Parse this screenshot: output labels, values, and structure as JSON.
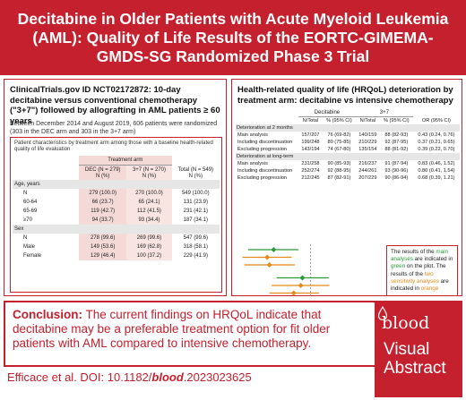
{
  "header": {
    "title": "Decitabine in Older Patients with Acute Myeloid Leukemia (AML): Quality of Life Results of the EORTC-GIMEMA-GMDS-SG Randomized Phase 3 Trial"
  },
  "left_panel": {
    "title": "ClinicalTrials.gov ID NCT02172872: 10-day decitabine versus conventional chemotherapy (\"3+7\") followed by allografting in AML patients ≥ 60 years",
    "description": "Between December 2014 and August 2019, 606 patients were randomized (303 in the DEC arm and 303 in the 3+7 arm)",
    "table_caption": "Patient characteristics by treatment arm among those with a baseline health-related quality of life evaluation",
    "treatment_arm_label": "Treatment arm",
    "columns": [
      "DEC (N = 279)\nN (%)",
      "3+7 (N = 270)\nN (%)",
      "Total (N = 549)\nN (%)"
    ],
    "col_dec": "DEC (N = 279)",
    "col_37": "3+7 (N = 270)",
    "col_total": "Total (N = 549)",
    "col_unit": "N (%)",
    "rows": [
      {
        "label": "Age, years",
        "section": true,
        "values": [
          "",
          "",
          ""
        ]
      },
      {
        "label": "N",
        "section": false,
        "values": [
          "279 (100.0)",
          "270 (100.0)",
          "549 (100.0)"
        ]
      },
      {
        "label": "60-64",
        "section": false,
        "values": [
          "66 (23.7)",
          "65 (24.1)",
          "131 (23.9)"
        ]
      },
      {
        "label": "65-69",
        "section": false,
        "values": [
          "119 (42.7)",
          "112 (41.5)",
          "231 (42.1)"
        ]
      },
      {
        "label": "≥70",
        "section": false,
        "values": [
          "94 (33.7)",
          "93 (34.4)",
          "187 (34.1)"
        ]
      },
      {
        "label": "Sex",
        "section": true,
        "values": [
          "",
          "",
          ""
        ]
      },
      {
        "label": "N",
        "section": false,
        "values": [
          "278 (99.6)",
          "269 (99.6)",
          "547 (99.6)"
        ]
      },
      {
        "label": "Male",
        "section": false,
        "values": [
          "149 (53.6)",
          "169 (62.8)",
          "318 (58.1)"
        ]
      },
      {
        "label": "Female",
        "section": false,
        "values": [
          "129 (46.4)",
          "100 (37.2)",
          "229 (41.9)"
        ]
      }
    ]
  },
  "right_panel": {
    "title": "Health-related quality of life (HRQoL) deterioration by treatment arm: decitabine vs intensive chemotherapy",
    "group_dec": "Decitabine",
    "group_37": "3+7",
    "columns": [
      "N/Total",
      "% (95% CI)",
      "N/Total",
      "% (95% CI)",
      "OR (95% CI)"
    ],
    "rows": [
      {
        "label": "Deterioration at 2 months",
        "section": true,
        "values": [
          "",
          "",
          "",
          "",
          ""
        ]
      },
      {
        "label": "Main analysis",
        "section": false,
        "values": [
          "157/207",
          "76 (69-82)",
          "140/159",
          "88 (82-93)",
          "0.43 (0.24, 0.76)"
        ]
      },
      {
        "label": "Including discontinuation",
        "section": false,
        "values": [
          "199/248",
          "80 (75-85)",
          "210/229",
          "92 (87-95)",
          "0.37 (0.21, 0.65)"
        ]
      },
      {
        "label": "Excluding progression",
        "section": false,
        "values": [
          "143/194",
          "74 (67-80)",
          "135/154",
          "88 (81-92)",
          "0.39 (0.22, 0.70)"
        ]
      },
      {
        "label": "Deterioration at long-term",
        "section": true,
        "values": [
          "",
          "",
          "",
          "",
          ""
        ]
      },
      {
        "label": "Main analysis",
        "section": false,
        "values": [
          "231/258",
          "90 (85-93)",
          "216/237",
          "91 (87-94)",
          "0.83 (0.46, 1.52)"
        ]
      },
      {
        "label": "Including discontinuation",
        "section": false,
        "values": [
          "252/274",
          "92 (88-95)",
          "244/261",
          "93 (90-96)",
          "0.80 (0.41, 1.54)"
        ]
      },
      {
        "label": "Excluding progression",
        "section": false,
        "values": [
          "212/245",
          "87 (82-91)",
          "207/229",
          "90 (86-94)",
          "0.68 (0.39, 1.21)"
        ]
      }
    ],
    "forest_plot": {
      "points": [
        {
          "or": 0.43,
          "lo": 0.24,
          "hi": 0.76,
          "color": "#2b9a3a"
        },
        {
          "or": 0.37,
          "lo": 0.21,
          "hi": 0.65,
          "color": "#e58a1c"
        },
        {
          "or": 0.39,
          "lo": 0.22,
          "hi": 0.7,
          "color": "#e58a1c"
        },
        {
          "or": 0.83,
          "lo": 0.46,
          "hi": 1.52,
          "color": "#2b9a3a"
        },
        {
          "or": 0.8,
          "lo": 0.41,
          "hi": 1.54,
          "color": "#e58a1c"
        },
        {
          "or": 0.68,
          "lo": 0.39,
          "hi": 1.21,
          "color": "#e58a1c"
        }
      ],
      "ticks": [
        "0.25",
        "0.5",
        "1",
        "2",
        "4"
      ],
      "axis_label": "Odds ratio",
      "favors_left": "Favors\nDEC",
      "favors_right": "Favors\n3+7",
      "note_prefix": "The results of the",
      "note_main": "main analyses",
      "note_mid": "are indicated in",
      "note_green": "green",
      "note_mid2": "on the plot. The results of the",
      "note_sens": "two sensitivity analyses",
      "note_mid3": "are indicated in",
      "note_orange": "orange",
      "green": "#2b9a3a",
      "orange": "#e58a1c"
    }
  },
  "conclusion": {
    "label": "Conclusion:",
    "text": "The current findings on HRQoL indicate that decitabine may be a preferable treatment option for fit older patients with AML compared to intensive chemotherapy."
  },
  "citation": {
    "prefix": "Efficace et al. DOI: 10.1182/",
    "journal": "blood",
    "suffix": ".2023023625"
  },
  "badge": {
    "logo": "blood",
    "line1": "Visual",
    "line2": "Abstract"
  },
  "colors": {
    "brand": "#c5202e",
    "highlight": "#f4dad7"
  }
}
